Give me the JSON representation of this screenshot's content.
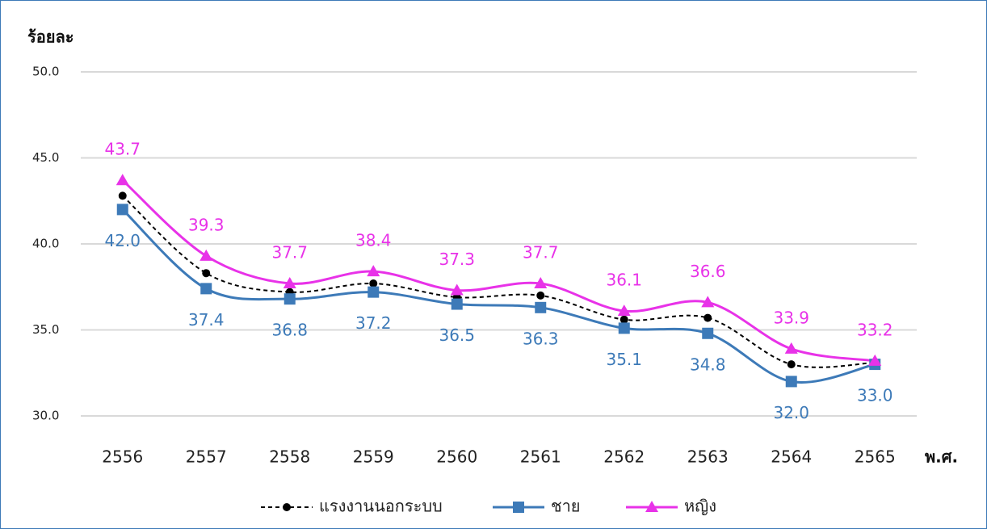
{
  "chart_data": {
    "type": "line",
    "y_label": "ร้อยละ",
    "x_label": "พ.ศ.",
    "categories": [
      "2556",
      "2557",
      "2558",
      "2559",
      "2560",
      "2561",
      "2562",
      "2563",
      "2564",
      "2565"
    ],
    "series": [
      {
        "name": "แรงงานนอกระบบ",
        "color": "#000000",
        "dashed": true,
        "marker": "circle",
        "values": [
          42.8,
          38.3,
          37.2,
          37.7,
          36.9,
          37.0,
          35.6,
          35.7,
          33.0,
          33.1
        ]
      },
      {
        "name": "ชาย",
        "color": "#3d7ab8",
        "marker": "square",
        "label_position": "below",
        "values": [
          42.0,
          37.4,
          36.8,
          37.2,
          36.5,
          36.3,
          35.1,
          34.8,
          32.0,
          33.0
        ],
        "value_labels": [
          "42.0",
          "37.4",
          "36.8",
          "37.2",
          "36.5",
          "36.3",
          "35.1",
          "34.8",
          "32.0",
          "33.0"
        ]
      },
      {
        "name": "หญิง",
        "color": "#e832e8",
        "marker": "triangle",
        "label_position": "above",
        "values": [
          43.7,
          39.3,
          37.7,
          38.4,
          37.3,
          37.7,
          36.1,
          36.6,
          33.9,
          33.2
        ],
        "value_labels": [
          "43.7",
          "39.3",
          "37.7",
          "38.4",
          "37.3",
          "37.7",
          "36.1",
          "36.6",
          "33.9",
          "33.2"
        ]
      }
    ],
    "ylim": [
      30,
      50
    ],
    "yticks": [
      {
        "value": 30,
        "label": "30.0"
      },
      {
        "value": 35,
        "label": "35.0"
      },
      {
        "value": 40,
        "label": "40.0"
      },
      {
        "value": 45,
        "label": "45.0"
      },
      {
        "value": 50,
        "label": "50.0"
      }
    ],
    "grid": true,
    "legend": "bottom"
  }
}
